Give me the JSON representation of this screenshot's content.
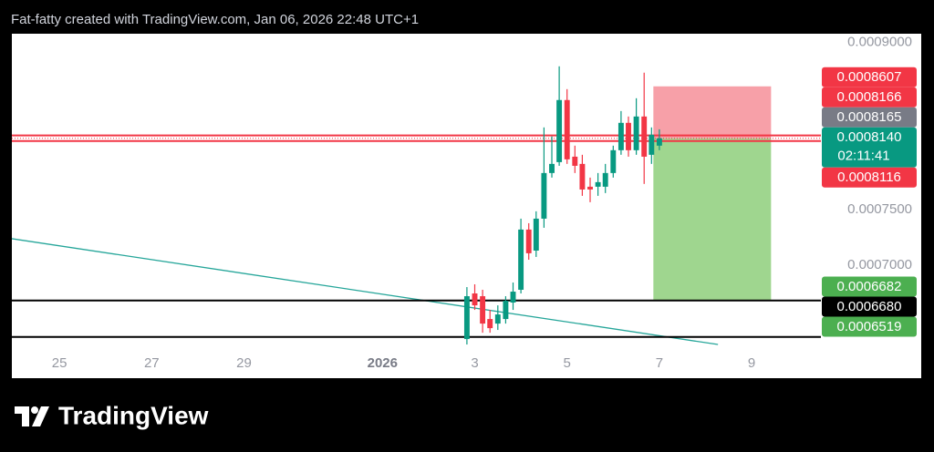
{
  "chart_data": {
    "type": "candlestick",
    "title": "Fat-fatty created with TradingView.com, Jan 06, 2026 22:48 UTC+1",
    "watermark": "TradingView",
    "x": [
      8.83,
      9,
      9.17,
      9.33,
      9.5,
      9.67,
      9.83,
      10,
      10.17,
      10.33,
      10.5,
      10.67,
      10.83,
      11,
      11.17,
      11.33,
      11.5,
      11.67,
      11.83,
      12,
      12.17,
      12.33,
      12.5,
      12.67,
      12.83,
      13
    ],
    "open": [
      0.0006336,
      0.0006746,
      0.0006721,
      0.0006516,
      0.0006475,
      0.0006516,
      0.0006664,
      0.0006779,
      0.000732,
      0.0007131,
      0.0007418,
      0.0007828,
      0.0007926,
      0.0008484,
      0.0007975,
      0.000791,
      0.0007705,
      0.0007705,
      0.0007705,
      0.0007828,
      0.0008033,
      0.0008279,
      0.0008033,
      0.0008336,
      0.0007992,
      0.0008074
    ],
    "high": [
      0.0006803,
      0.0006828,
      0.0006779,
      0.0006598,
      0.0006639,
      0.0006721,
      0.0006844,
      0.0007418,
      0.0007377,
      0.0007484,
      0.0008238,
      0.0008157,
      0.0008787,
      0.0008582,
      0.0008074,
      0.0007992,
      0.0007787,
      0.0007828,
      0.000791,
      0.0008074,
      0.0008385,
      0.0008336,
      0.00085,
      0.000873,
      0.0008238,
      0.0008221
    ],
    "low": [
      0.0006287,
      0.0006598,
      0.0006393,
      0.0006393,
      0.0006418,
      0.0006475,
      0.0006598,
      0.0006746,
      0.0007049,
      0.0007074,
      0.0007336,
      0.0007787,
      0.0007893,
      0.000791,
      0.0007828,
      0.0007623,
      0.0007566,
      0.0007623,
      0.0007648,
      0.0007787,
      0.0007992,
      0.0007975,
      0.0007992,
      0.000773,
      0.000791,
      0.0008033
    ],
    "close": [
      0.0006721,
      0.0006639,
      0.0006475,
      0.0006434,
      0.0006557,
      0.000668,
      0.0006762,
      0.000732,
      0.0007107,
      0.0007418,
      0.0007828,
      0.000791,
      0.0008484,
      0.0007951,
      0.0007893,
      0.000768,
      0.000768,
      0.0007746,
      0.0007828,
      0.0008033,
      0.0008279,
      0.0008033,
      0.0008336,
      0.0007975,
      0.0008172,
      0.000814
    ],
    "up_color": "#089981",
    "down_color": "#f23645",
    "xlim": [
      -1.03,
      16.5
    ],
    "xticks": [
      {
        "value": 0,
        "label": "25"
      },
      {
        "value": 2,
        "label": "27"
      },
      {
        "value": 4,
        "label": "29"
      },
      {
        "value": 7,
        "label": "2026"
      },
      {
        "value": 9,
        "label": "3"
      },
      {
        "value": 11,
        "label": "5"
      },
      {
        "value": 13,
        "label": "7"
      },
      {
        "value": 15,
        "label": "9"
      }
    ],
    "ylim": [
      0.000623,
      0.000908
    ],
    "yticks": [
      {
        "value": 0.0009,
        "label": "0.0009000"
      },
      {
        "value": 0.00075,
        "label": "0.0007500"
      },
      {
        "value": 0.0007,
        "label": "0.0007000"
      }
    ],
    "levels": [
      {
        "value": 0.0008166,
        "color": "#f23645",
        "style": "solid"
      },
      {
        "value": 0.000814,
        "color": "#f23645",
        "style": "dotted"
      },
      {
        "value": 0.0008116,
        "color": "#f23645",
        "style": "solid"
      },
      {
        "value": 0.0006682,
        "color": "#000000",
        "style": "solid"
      },
      {
        "value": 0.0006355,
        "color": "#000000",
        "style": "solid"
      }
    ],
    "trendline": {
      "x": [
        -1.03,
        14.27
      ],
      "y": [
        0.0007238,
        0.0006287
      ],
      "color": "#26a69a"
    },
    "position": {
      "x": [
        12.87,
        15.42
      ],
      "entry": 0.000814,
      "stop": 0.0008607,
      "target": 0.0006682,
      "stop_color": "#f7a0a8",
      "target_color": "#9fd68f"
    },
    "price_labels": [
      {
        "value": 0.0008607,
        "label": "0.0008607",
        "color": "#f23645"
      },
      {
        "value": 0.0008166,
        "label": "0.0008166",
        "color": "#f23645"
      },
      {
        "value": 0.0008165,
        "label": "0.0008165",
        "color": "#787b86"
      },
      {
        "value": 0.000814,
        "label": "0.0008140",
        "sublabel": "02:11:41",
        "color": "#089981"
      },
      {
        "value": 0.0008116,
        "label": "0.0008116",
        "color": "#f23645"
      },
      {
        "value": 0.0006682,
        "label": "0.0006682",
        "color": "#4caf50"
      },
      {
        "value": 0.000668,
        "label": "0.0006680",
        "color": "#000000"
      },
      {
        "value": 0.0006519,
        "label": "0.0006519",
        "color": "#4caf50"
      }
    ]
  }
}
